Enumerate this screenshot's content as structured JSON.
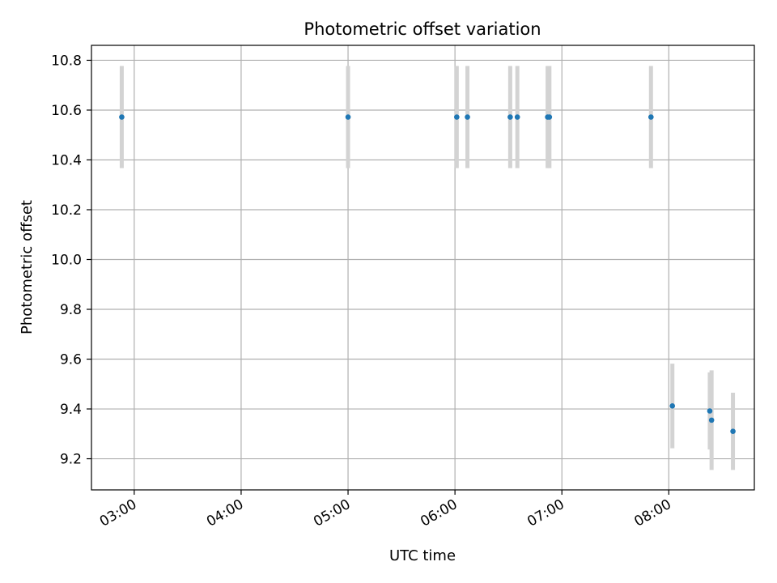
{
  "chart_data": {
    "type": "scatter",
    "title": "Photometric offset variation",
    "xlabel": "UTC time",
    "ylabel": "Photometric offset",
    "x_axis_type": "time",
    "xlim": [
      "02:36",
      "08:48"
    ],
    "ylim": [
      9.075,
      10.86
    ],
    "x_ticks": [
      "03:00",
      "04:00",
      "05:00",
      "06:00",
      "07:00",
      "08:00"
    ],
    "y_ticks": [
      9.2,
      9.4,
      9.6,
      9.8,
      10.0,
      10.2,
      10.4,
      10.6,
      10.8
    ],
    "grid": true,
    "legend": "none",
    "marker_color": "#1f77b4",
    "errorbar_color": "#d3d3d3",
    "points": [
      {
        "x": "02:53",
        "y": 10.572,
        "err": 0.205
      },
      {
        "x": "05:00",
        "y": 10.572,
        "err": 0.205
      },
      {
        "x": "06:01",
        "y": 10.572,
        "err": 0.205
      },
      {
        "x": "06:07",
        "y": 10.572,
        "err": 0.205
      },
      {
        "x": "06:31",
        "y": 10.572,
        "err": 0.205
      },
      {
        "x": "06:35",
        "y": 10.572,
        "err": 0.205
      },
      {
        "x": "06:52",
        "y": 10.572,
        "err": 0.205
      },
      {
        "x": "06:53",
        "y": 10.572,
        "err": 0.205
      },
      {
        "x": "07:50",
        "y": 10.572,
        "err": 0.205
      },
      {
        "x": "08:02",
        "y": 9.412,
        "err": 0.17
      },
      {
        "x": "08:23",
        "y": 9.392,
        "err": 0.155
      },
      {
        "x": "08:24",
        "y": 9.355,
        "err": 0.2
      },
      {
        "x": "08:36",
        "y": 9.31,
        "err": 0.155
      }
    ]
  }
}
